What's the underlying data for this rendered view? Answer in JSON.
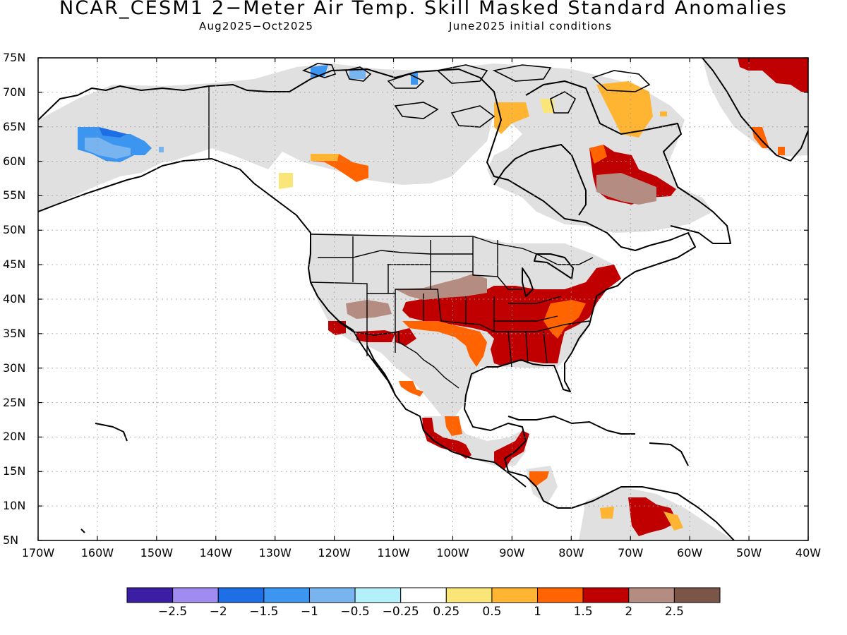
{
  "header": {
    "title": "NCAR_CESM1 2−Meter Air Temp. Skill Masked Standard Anomalies",
    "period": "Aug2025−Oct2025",
    "init": "June2025 initial conditions"
  },
  "map": {
    "lat_labels": [
      "75N",
      "70N",
      "65N",
      "60N",
      "55N",
      "50N",
      "45N",
      "40N",
      "35N",
      "30N",
      "25N",
      "20N",
      "15N",
      "10N",
      "5N"
    ],
    "lon_labels": [
      "170W",
      "160W",
      "150W",
      "140W",
      "130W",
      "120W",
      "110W",
      "100W",
      "90W",
      "80W",
      "70W",
      "60W",
      "50W",
      "40W"
    ],
    "extent": {
      "lon": [
        -170,
        -40
      ],
      "lat": [
        5,
        75
      ]
    },
    "grid": "dotted"
  },
  "colorbar": {
    "colors": [
      "#3c1ea5",
      "#a08cf0",
      "#1e6ee6",
      "#3c96f0",
      "#78b4f0",
      "#b4f0fa",
      "#ffffff",
      "#fae678",
      "#ffb432",
      "#ff6400",
      "#c00000",
      "#b48c82",
      "#7a5548"
    ],
    "labels": [
      "−2.5",
      "−2",
      "−1.5",
      "−1",
      "−0.5",
      "−0.25",
      "0.25",
      "0.5",
      "1",
      "1.5",
      "2",
      "2.5"
    ]
  },
  "legend_colors": {
    "masked": "#e0e0e0"
  }
}
